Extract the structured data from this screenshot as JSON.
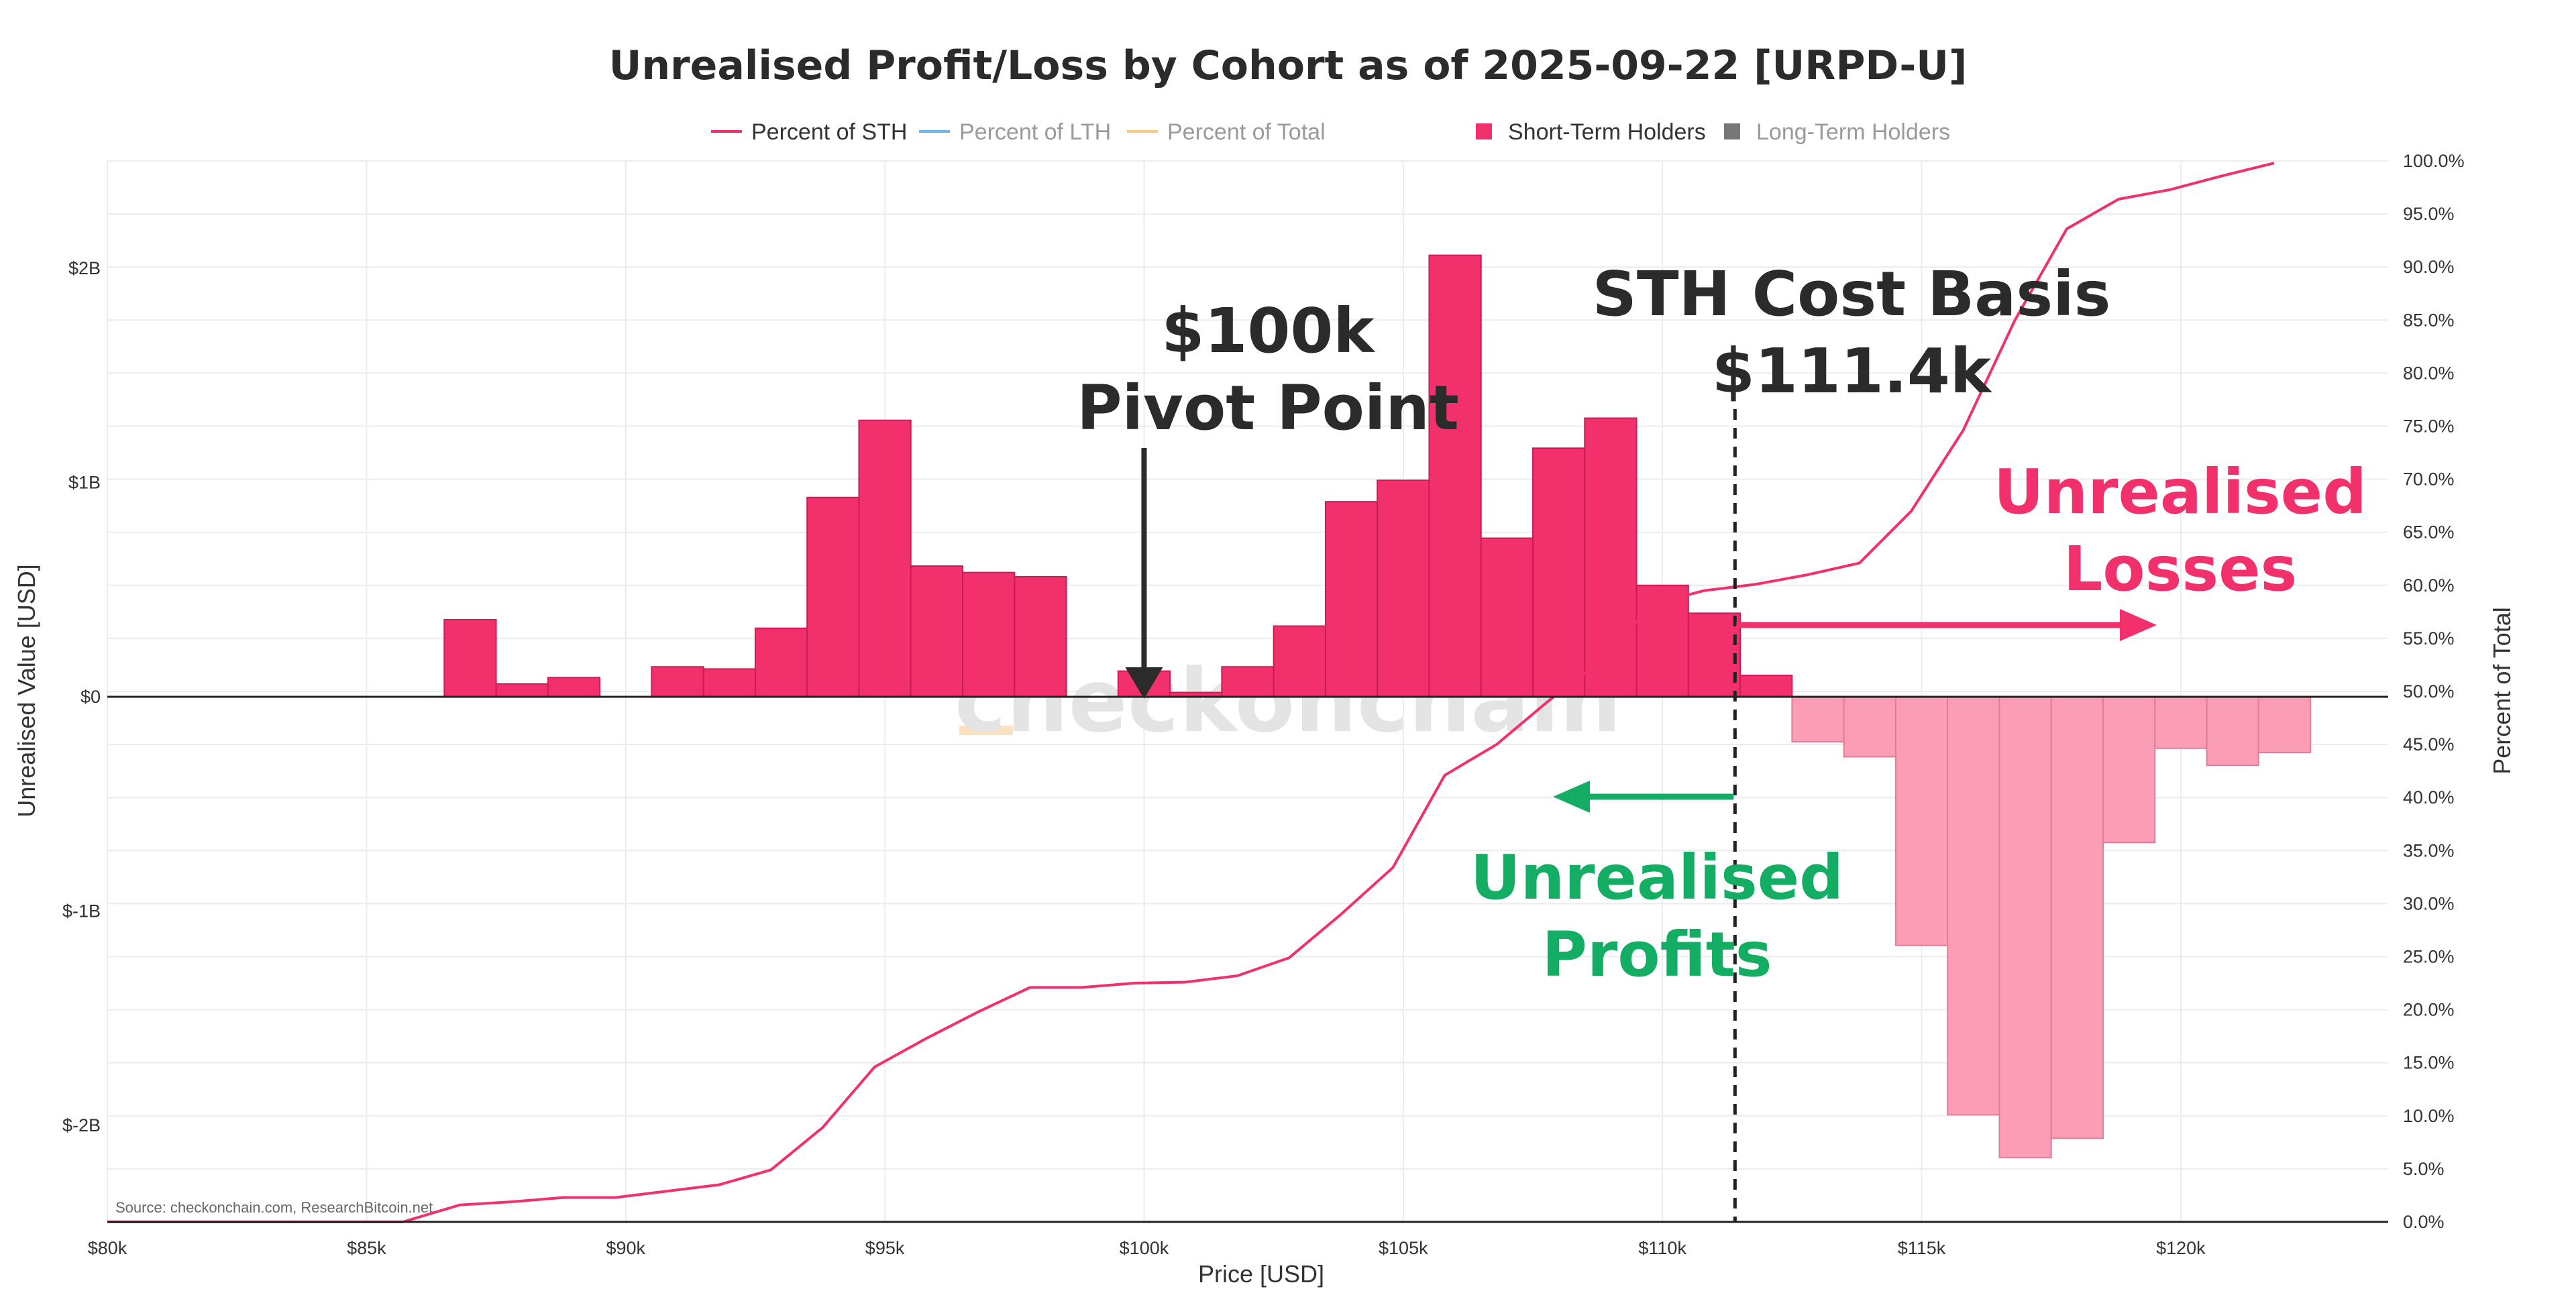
{
  "chart_data": {
    "type": "bar",
    "title": "Unrealised Profit/Loss by Cohort as of 2025-09-22 [URPD-U]",
    "xlabel": "Price [USD]",
    "ylabel": "Unrealised Value [USD]",
    "y2label": "Percent of Total",
    "xlim": [
      80000,
      124000
    ],
    "ylim": [
      -2.45,
      2.5
    ],
    "y2lim": [
      0,
      100
    ],
    "x_ticks": [
      {
        "value": 80000,
        "label": "$80k"
      },
      {
        "value": 85000,
        "label": "$85k"
      },
      {
        "value": 90000,
        "label": "$90k"
      },
      {
        "value": 95000,
        "label": "$95k"
      },
      {
        "value": 100000,
        "label": "$100k"
      },
      {
        "value": 105000,
        "label": "$105k"
      },
      {
        "value": 110000,
        "label": "$110k"
      },
      {
        "value": 115000,
        "label": "$115k"
      },
      {
        "value": 120000,
        "label": "$120k"
      }
    ],
    "y_ticks": [
      {
        "value": 2,
        "label": "$2B"
      },
      {
        "value": 1,
        "label": "$1B"
      },
      {
        "value": 0,
        "label": "$0"
      },
      {
        "value": -1,
        "label": "$-1B"
      },
      {
        "value": -2,
        "label": "$-2B"
      }
    ],
    "y2_ticks": [
      {
        "value": 100,
        "label": "100.0%"
      },
      {
        "value": 95,
        "label": "95.0%"
      },
      {
        "value": 90,
        "label": "90.0%"
      },
      {
        "value": 85,
        "label": "85.0%"
      },
      {
        "value": 80,
        "label": "80.0%"
      },
      {
        "value": 75,
        "label": "75.0%"
      },
      {
        "value": 70,
        "label": "70.0%"
      },
      {
        "value": 65,
        "label": "65.0%"
      },
      {
        "value": 60,
        "label": "60.0%"
      },
      {
        "value": 55,
        "label": "55.0%"
      },
      {
        "value": 50,
        "label": "50.0%"
      },
      {
        "value": 45,
        "label": "45.0%"
      },
      {
        "value": 40,
        "label": "40.0%"
      },
      {
        "value": 35,
        "label": "35.0%"
      },
      {
        "value": 30,
        "label": "30.0%"
      },
      {
        "value": 25,
        "label": "25.0%"
      },
      {
        "value": 20,
        "label": "20.0%"
      },
      {
        "value": 15,
        "label": "15.0%"
      },
      {
        "value": 10,
        "label": "10.0%"
      },
      {
        "value": 5,
        "label": "5.0%"
      },
      {
        "value": 0,
        "label": "0.0%"
      }
    ],
    "bin_width": 1000,
    "legend": [
      {
        "name": "Percent of STH",
        "color": "#f2306c",
        "kind": "line",
        "active": true
      },
      {
        "name": "Percent of LTH",
        "color": "#6fb3f0",
        "kind": "line",
        "active": false
      },
      {
        "name": "Percent of Total",
        "color": "#f7c98b",
        "kind": "line",
        "active": false
      },
      {
        "name": "Short-Term Holders",
        "color": "#f2306c",
        "kind": "box",
        "active": true
      },
      {
        "name": "Long-Term Holders",
        "color": "#777777",
        "kind": "box",
        "active": false
      }
    ],
    "series": [
      {
        "name": "Short-Term Holders",
        "color_profit": "#f2306c",
        "color_loss": "#fb9db4",
        "bars": [
          {
            "x0": 86500,
            "value": 0.36
          },
          {
            "x0": 87500,
            "value": 0.06
          },
          {
            "x0": 88500,
            "value": 0.09
          },
          {
            "x0": 89500,
            "value": 0.0
          },
          {
            "x0": 90500,
            "value": 0.14
          },
          {
            "x0": 91500,
            "value": 0.13
          },
          {
            "x0": 92500,
            "value": 0.32
          },
          {
            "x0": 93500,
            "value": 0.93
          },
          {
            "x0": 94500,
            "value": 1.29
          },
          {
            "x0": 95500,
            "value": 0.61
          },
          {
            "x0": 96500,
            "value": 0.58
          },
          {
            "x0": 97500,
            "value": 0.56
          },
          {
            "x0": 98500,
            "value": 0.0
          },
          {
            "x0": 99500,
            "value": 0.12
          },
          {
            "x0": 100500,
            "value": 0.02
          },
          {
            "x0": 101500,
            "value": 0.14
          },
          {
            "x0": 102500,
            "value": 0.33
          },
          {
            "x0": 103500,
            "value": 0.91
          },
          {
            "x0": 104500,
            "value": 1.01
          },
          {
            "x0": 105500,
            "value": 2.06
          },
          {
            "x0": 106500,
            "value": 0.74
          },
          {
            "x0": 107500,
            "value": 1.16
          },
          {
            "x0": 108500,
            "value": 1.3
          },
          {
            "x0": 109500,
            "value": 0.52
          },
          {
            "x0": 110500,
            "value": 0.39
          },
          {
            "x0": 111500,
            "value": 0.1
          },
          {
            "x0": 112500,
            "value": -0.21
          },
          {
            "x0": 113500,
            "value": -0.28
          },
          {
            "x0": 114500,
            "value": -1.16
          },
          {
            "x0": 115500,
            "value": -1.95
          },
          {
            "x0": 116500,
            "value": -2.15
          },
          {
            "x0": 117500,
            "value": -2.06
          },
          {
            "x0": 118500,
            "value": -0.68
          },
          {
            "x0": 119500,
            "value": -0.24
          },
          {
            "x0": 120500,
            "value": -0.32
          },
          {
            "x0": 121500,
            "value": -0.26
          }
        ]
      },
      {
        "name": "Percent of STH",
        "axis": "right",
        "color": "#f2306c",
        "points": [
          [
            80000,
            0
          ],
          [
            85700,
            0
          ],
          [
            86800,
            1.6
          ],
          [
            87800,
            1.9
          ],
          [
            88800,
            2.3
          ],
          [
            89800,
            2.3
          ],
          [
            90800,
            2.9
          ],
          [
            91800,
            3.5
          ],
          [
            92800,
            4.9
          ],
          [
            93800,
            8.9
          ],
          [
            94800,
            14.6
          ],
          [
            95800,
            17.3
          ],
          [
            96800,
            19.8
          ],
          [
            97800,
            22.1
          ],
          [
            98800,
            22.1
          ],
          [
            99800,
            22.5
          ],
          [
            100800,
            22.6
          ],
          [
            101800,
            23.2
          ],
          [
            102800,
            24.9
          ],
          [
            103800,
            29.0
          ],
          [
            104800,
            33.4
          ],
          [
            105800,
            42.1
          ],
          [
            106800,
            45.0
          ],
          [
            107800,
            49.1
          ],
          [
            108800,
            52.8
          ],
          [
            109800,
            58.2
          ],
          [
            110800,
            59.5
          ],
          [
            111800,
            60.1
          ],
          [
            112800,
            61.0
          ],
          [
            113800,
            62.1
          ],
          [
            114800,
            67.0
          ],
          [
            115800,
            74.6
          ],
          [
            116800,
            85.0
          ],
          [
            117800,
            93.6
          ],
          [
            118800,
            96.4
          ],
          [
            119800,
            97.3
          ],
          [
            120800,
            98.6
          ],
          [
            121800,
            99.8
          ]
        ]
      }
    ],
    "annotations": {
      "pivot_line1": "$100k",
      "pivot_line2": "Pivot Point",
      "pivot_arrow_x": 100000,
      "cost_basis_line1": "STH Cost Basis",
      "cost_basis_line2": "$111.4k",
      "cost_basis_x": 111400,
      "losses_line1": "Unrealised",
      "losses_line2": "Losses",
      "profits_line1": "Unrealised",
      "profits_line2": "Profits"
    },
    "watermark": "checkonchain",
    "source": "Source: checkonchain.com, ResearchBitcoin.net"
  }
}
